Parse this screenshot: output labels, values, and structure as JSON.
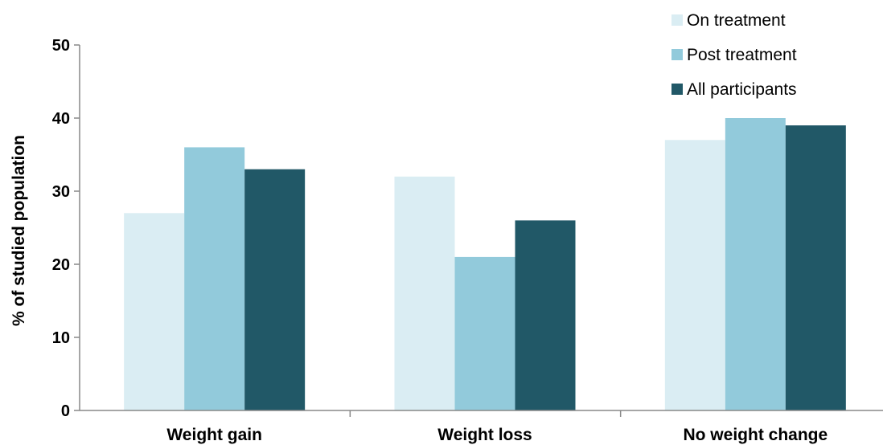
{
  "chart_data": {
    "type": "bar",
    "title": "",
    "xlabel": "",
    "ylabel": "% of studied population",
    "ylim": [
      0,
      50
    ],
    "yticks": [
      0,
      10,
      20,
      30,
      40,
      50
    ],
    "grid": false,
    "legend_position": "top-right",
    "categories": [
      "Weight gain",
      "Weight loss",
      "No weight change"
    ],
    "series": [
      {
        "name": "On treatment",
        "color": "#daedf3",
        "values": [
          27,
          32,
          37
        ]
      },
      {
        "name": "Post treatment",
        "color": "#92cadb",
        "values": [
          36,
          21,
          40
        ]
      },
      {
        "name": "All participants",
        "color": "#215867",
        "values": [
          33,
          26,
          39
        ]
      }
    ]
  }
}
